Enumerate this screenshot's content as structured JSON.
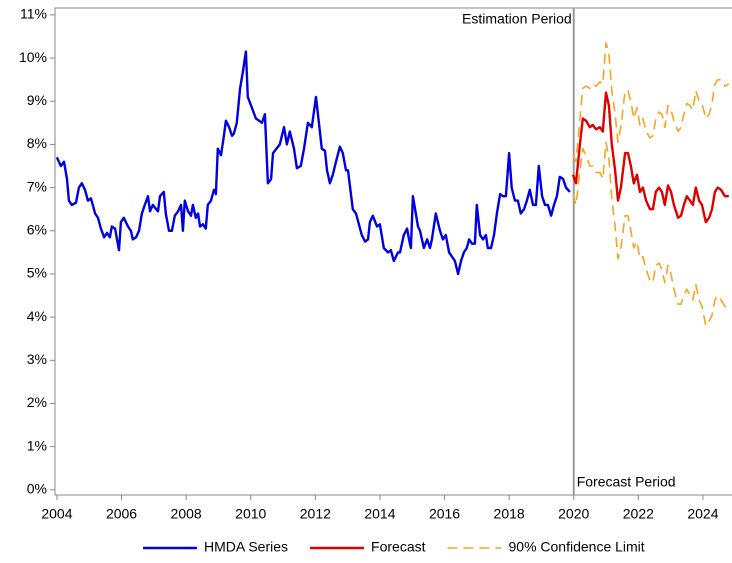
{
  "chart_data": {
    "type": "line",
    "xlim": [
      2003.94,
      2024.9
    ],
    "ylim": [
      -0.12,
      11.16
    ],
    "xticks": [
      2004,
      2006,
      2008,
      2010,
      2012,
      2014,
      2016,
      2018,
      2020,
      2022,
      2024
    ],
    "yticks": [
      {
        "value": 0,
        "label": "0%"
      },
      {
        "value": 1,
        "label": "1%"
      },
      {
        "value": 2,
        "label": "2%"
      },
      {
        "value": 3,
        "label": "3%"
      },
      {
        "value": 4,
        "label": "4%"
      },
      {
        "value": 5,
        "label": "5%"
      },
      {
        "value": 6,
        "label": "6%"
      },
      {
        "value": 7,
        "label": "7%"
      },
      {
        "value": 8,
        "label": "8%"
      },
      {
        "value": 9,
        "label": "9%"
      },
      {
        "value": 10,
        "label": "10%"
      },
      {
        "value": 11,
        "label": "11%"
      }
    ],
    "reference_line": {
      "x": 2020,
      "labels": [
        "Estimation Period",
        "Forecast Period"
      ]
    },
    "series": [
      {
        "name": "HMDA Series",
        "color": "#0000e0",
        "style": "solid",
        "x": [
          2004.0,
          2004.12,
          2004.22,
          2004.31,
          2004.37,
          2004.46,
          2004.59,
          2004.68,
          2004.77,
          2004.87,
          2004.96,
          2005.05,
          2005.11,
          2005.18,
          2005.27,
          2005.36,
          2005.46,
          2005.55,
          2005.64,
          2005.7,
          2005.8,
          2005.86,
          2005.92,
          2005.98,
          2006.07,
          2006.2,
          2006.29,
          2006.35,
          2006.45,
          2006.54,
          2006.63,
          2006.72,
          2006.82,
          2006.88,
          2006.97,
          2007.07,
          2007.13,
          2007.19,
          2007.31,
          2007.37,
          2007.47,
          2007.56,
          2007.65,
          2007.75,
          2007.84,
          2007.9,
          2007.96,
          2008.06,
          2008.15,
          2008.21,
          2008.3,
          2008.37,
          2008.43,
          2008.52,
          2008.61,
          2008.67,
          2008.77,
          2008.86,
          2008.92,
          2008.98,
          2009.08,
          2009.17,
          2009.23,
          2009.33,
          2009.42,
          2009.48,
          2009.57,
          2009.67,
          2009.76,
          2009.85,
          2009.91,
          2010.16,
          2010.35,
          2010.44,
          2010.53,
          2010.63,
          2010.69,
          2010.9,
          2011.03,
          2011.12,
          2011.21,
          2011.34,
          2011.43,
          2011.55,
          2011.65,
          2011.77,
          2011.89,
          2012.02,
          2012.11,
          2012.2,
          2012.3,
          2012.36,
          2012.45,
          2012.54,
          2012.64,
          2012.76,
          2012.85,
          2012.95,
          2013.01,
          2013.16,
          2013.26,
          2013.44,
          2013.54,
          2013.63,
          2013.69,
          2013.78,
          2013.91,
          2014.0,
          2014.12,
          2014.25,
          2014.34,
          2014.43,
          2014.56,
          2014.62,
          2014.74,
          2014.84,
          2014.9,
          2014.96,
          2015.02,
          2015.18,
          2015.24,
          2015.36,
          2015.46,
          2015.55,
          2015.61,
          2015.73,
          2015.86,
          2015.95,
          2016.04,
          2016.14,
          2016.23,
          2016.32,
          2016.42,
          2016.51,
          2016.6,
          2016.69,
          2016.76,
          2016.85,
          2016.94,
          2017.0,
          2017.1,
          2017.19,
          2017.28,
          2017.34,
          2017.44,
          2017.53,
          2017.62,
          2017.72,
          2017.81,
          2017.9,
          2018.0,
          2018.08,
          2018.18,
          2018.27,
          2018.36,
          2018.46,
          2018.55,
          2018.64,
          2018.74,
          2018.83,
          2018.92,
          2019.02,
          2019.11,
          2019.2,
          2019.3,
          2019.39,
          2019.48,
          2019.57,
          2019.67,
          2019.76,
          2019.88
        ],
        "values": [
          7.7,
          7.5,
          7.6,
          7.2,
          6.7,
          6.6,
          6.65,
          7.0,
          7.1,
          6.95,
          6.7,
          6.75,
          6.6,
          6.4,
          6.3,
          6.05,
          5.85,
          5.95,
          5.85,
          6.1,
          6.05,
          5.8,
          5.55,
          6.2,
          6.3,
          6.1,
          6.0,
          5.8,
          5.85,
          6.0,
          6.4,
          6.6,
          6.8,
          6.45,
          6.6,
          6.5,
          6.45,
          6.8,
          6.9,
          6.4,
          6.0,
          6.0,
          6.35,
          6.45,
          6.6,
          6.0,
          6.7,
          6.45,
          6.35,
          6.6,
          6.3,
          6.4,
          6.1,
          6.15,
          6.05,
          6.6,
          6.7,
          6.95,
          6.85,
          7.9,
          7.75,
          8.2,
          8.55,
          8.4,
          8.2,
          8.25,
          8.5,
          9.3,
          9.7,
          10.15,
          9.1,
          8.6,
          8.5,
          8.7,
          7.1,
          7.2,
          7.8,
          8.0,
          8.4,
          8.0,
          8.3,
          7.9,
          7.45,
          7.5,
          7.9,
          8.5,
          8.4,
          9.1,
          8.5,
          7.9,
          7.85,
          7.4,
          7.1,
          7.3,
          7.6,
          7.95,
          7.8,
          7.4,
          7.4,
          6.5,
          6.4,
          5.9,
          5.75,
          5.8,
          6.2,
          6.35,
          6.1,
          6.15,
          5.6,
          5.5,
          5.55,
          5.3,
          5.5,
          5.5,
          5.9,
          6.05,
          5.8,
          5.6,
          6.8,
          6.1,
          6.0,
          5.6,
          5.8,
          5.6,
          5.8,
          6.4,
          6.0,
          5.8,
          5.9,
          5.5,
          5.4,
          5.3,
          5.0,
          5.3,
          5.5,
          5.6,
          5.8,
          5.7,
          5.7,
          6.6,
          5.9,
          5.8,
          5.9,
          5.6,
          5.6,
          5.9,
          6.4,
          6.85,
          6.8,
          6.8,
          7.8,
          7.0,
          6.7,
          6.7,
          6.4,
          6.5,
          6.7,
          6.95,
          6.6,
          6.6,
          7.5,
          6.8,
          6.6,
          6.6,
          6.35,
          6.6,
          6.8,
          7.25,
          7.2,
          7.0,
          6.9
        ]
      },
      {
        "name": "Forecast",
        "color": "#e00000",
        "style": "solid",
        "x": [
          2019.98,
          2020.07,
          2020.19,
          2020.28,
          2020.38,
          2020.5,
          2020.59,
          2020.69,
          2020.81,
          2020.9,
          2021.0,
          2021.09,
          2021.18,
          2021.28,
          2021.37,
          2021.46,
          2021.59,
          2021.68,
          2021.77,
          2021.86,
          2021.96,
          2022.05,
          2022.14,
          2022.24,
          2022.36,
          2022.45,
          2022.54,
          2022.64,
          2022.73,
          2022.82,
          2022.92,
          2023.01,
          2023.1,
          2023.23,
          2023.32,
          2023.41,
          2023.5,
          2023.6,
          2023.69,
          2023.78,
          2023.88,
          2023.97,
          2024.09,
          2024.19,
          2024.28,
          2024.37,
          2024.46,
          2024.56,
          2024.68,
          2024.8
        ],
        "values": [
          7.3,
          7.1,
          8.0,
          8.6,
          8.55,
          8.4,
          8.45,
          8.35,
          8.4,
          8.3,
          9.2,
          8.9,
          8.0,
          7.4,
          6.7,
          7.0,
          7.8,
          7.8,
          7.5,
          7.1,
          7.3,
          6.9,
          7.0,
          6.7,
          6.5,
          6.5,
          6.9,
          7.0,
          6.9,
          6.6,
          7.05,
          6.9,
          6.6,
          6.3,
          6.35,
          6.6,
          6.8,
          6.7,
          6.6,
          7.0,
          6.7,
          6.6,
          6.2,
          6.3,
          6.5,
          6.9,
          7.0,
          6.95,
          6.8,
          6.8
        ]
      },
      {
        "name": "90% Confidence Limit",
        "color": "#f5a623",
        "style": "dashed",
        "x": [
          2019.98,
          2020.07,
          2020.19,
          2020.28,
          2020.38,
          2020.5,
          2020.59,
          2020.69,
          2020.81,
          2020.9,
          2021.0,
          2021.09,
          2021.18,
          2021.28,
          2021.37,
          2021.46,
          2021.59,
          2021.68,
          2021.77,
          2021.86,
          2021.96,
          2022.05,
          2022.14,
          2022.24,
          2022.36,
          2022.45,
          2022.54,
          2022.64,
          2022.73,
          2022.82,
          2022.92,
          2023.01,
          2023.1,
          2023.23,
          2023.32,
          2023.41,
          2023.5,
          2023.6,
          2023.69,
          2023.78,
          2023.88,
          2023.97,
          2024.09,
          2024.19,
          2024.28,
          2024.37,
          2024.46,
          2024.56,
          2024.68,
          2024.8
        ],
        "upper": [
          7.75,
          7.6,
          8.6,
          9.3,
          9.35,
          9.3,
          9.4,
          9.35,
          9.45,
          9.4,
          10.35,
          10.1,
          9.25,
          8.7,
          8.05,
          8.4,
          9.25,
          9.25,
          9.0,
          8.6,
          8.85,
          8.45,
          8.6,
          8.3,
          8.15,
          8.2,
          8.6,
          8.75,
          8.7,
          8.4,
          8.9,
          8.8,
          8.55,
          8.3,
          8.4,
          8.7,
          8.95,
          8.9,
          8.8,
          9.25,
          9.0,
          8.95,
          8.6,
          8.7,
          8.95,
          9.4,
          9.5,
          9.5,
          9.35,
          9.4
        ],
        "lower": [
          6.85,
          6.6,
          7.4,
          7.9,
          7.75,
          7.5,
          7.5,
          7.35,
          7.35,
          7.2,
          8.05,
          7.7,
          6.75,
          6.1,
          5.35,
          5.6,
          6.35,
          6.35,
          6.0,
          5.6,
          5.75,
          5.35,
          5.4,
          5.1,
          4.85,
          4.8,
          5.2,
          5.25,
          5.1,
          4.8,
          5.2,
          5.0,
          4.65,
          4.3,
          4.3,
          4.5,
          4.65,
          4.5,
          4.4,
          4.75,
          4.4,
          4.25,
          3.8,
          3.9,
          4.05,
          4.4,
          4.5,
          4.4,
          4.25,
          4.2
        ]
      }
    ]
  }
}
